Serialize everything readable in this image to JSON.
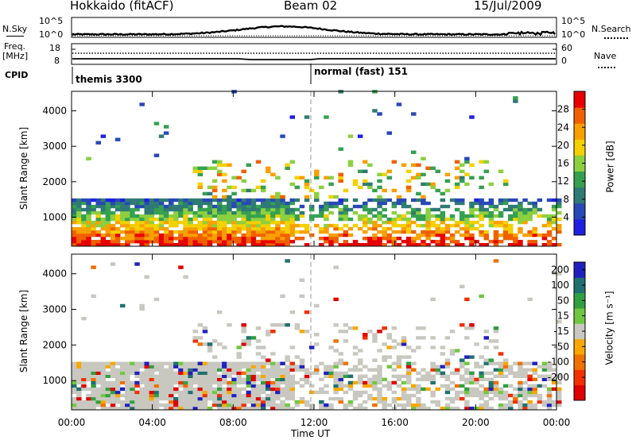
{
  "header": {
    "station": "Hokkaido (fitACF)",
    "beam": "Beam 02",
    "date": "15/Jul/2009"
  },
  "side_labels": {
    "nsky": "N.Sky",
    "nsearch": "N.Search",
    "freq": "Freq.",
    "freq_unit": "[MHz]",
    "nave": "Nave",
    "cpid": "CPID"
  },
  "small_axes": {
    "noise_ticks_left": [
      "10^5",
      "10^0"
    ],
    "noise_ticks_right": [
      "10^5",
      "10^0"
    ],
    "freq_ticks": [
      "18",
      "8"
    ],
    "nave_ticks": [
      "60",
      "0"
    ]
  },
  "cpid_labels": [
    "themis 3300",
    "normal (fast) 151"
  ],
  "colors": {
    "power_scale": [
      "#2020e0",
      "#2848b8",
      "#2f7a74",
      "#35a050",
      "#8cd040",
      "#f4d000",
      "#f8a000",
      "#f06000",
      "#e80000"
    ],
    "velocity_scale": [
      "#e00000",
      "#f03000",
      "#f07000",
      "#f8a800",
      "#c8c8c0",
      "#70c840",
      "#30a040",
      "#207070",
      "#2020c0"
    ],
    "background": "#ffffff"
  },
  "chart_data": [
    {
      "type": "heatmap",
      "panel": "power",
      "ylabel": "Slant Range [km]",
      "x_ticks": [
        "00:00",
        "04:00",
        "08:00",
        "12:00",
        "16:00",
        "20:00",
        "00:00"
      ],
      "y_ticks": [
        "1000",
        "2000",
        "3000",
        "4000"
      ],
      "ylim": [
        180,
        4550
      ],
      "colorbar": {
        "label": "Power [dB]",
        "ticks": [
          "4",
          "8",
          "12",
          "16",
          "20",
          "24",
          "28"
        ],
        "range": [
          0,
          32
        ]
      }
    },
    {
      "type": "heatmap",
      "panel": "velocity",
      "ylabel": "Slant Range [km]",
      "xlabel": "Time UT",
      "x_ticks": [
        "00:00",
        "04:00",
        "08:00",
        "12:00",
        "16:00",
        "20:00",
        "00:00"
      ],
      "y_ticks": [
        "1000",
        "2000",
        "3000",
        "4000"
      ],
      "ylim": [
        180,
        4550
      ],
      "colorbar": {
        "label": "Velocity [m s⁻¹]",
        "ticks": [
          "200",
          "100",
          "50",
          "15",
          "-15",
          "-50",
          "-100",
          "-200"
        ]
      }
    }
  ]
}
